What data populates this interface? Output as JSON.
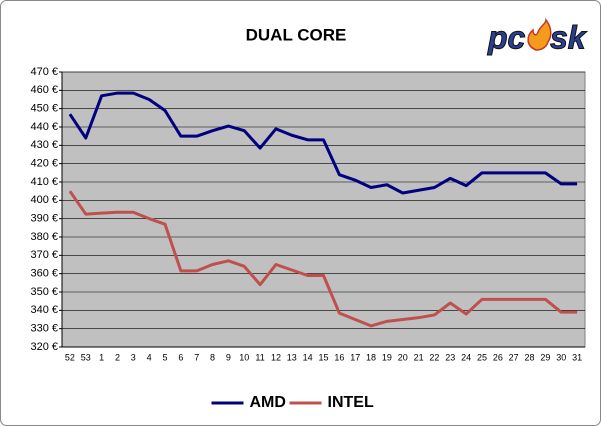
{
  "chart_data": {
    "type": "line",
    "title": "DUAL CORE",
    "logo": [
      "pc",
      "sk"
    ],
    "categories": [
      "52",
      "53",
      "1",
      "2",
      "3",
      "4",
      "5",
      "6",
      "7",
      "8",
      "9",
      "10",
      "11",
      "12",
      "13",
      "14",
      "15",
      "16",
      "17",
      "18",
      "19",
      "20",
      "21",
      "22",
      "23",
      "24",
      "25",
      "26",
      "27",
      "28",
      "29",
      "30",
      "31"
    ],
    "series": [
      {
        "name": "AMD",
        "color": "#000080",
        "values": [
          447,
          434,
          457,
          458.5,
          458.5,
          455,
          449,
          435,
          435,
          438,
          440.5,
          438,
          428.5,
          439,
          435.5,
          433,
          433,
          414,
          411,
          407,
          408.5,
          404,
          405.5,
          407,
          412,
          408,
          415,
          415,
          415,
          415,
          415,
          409,
          409
        ]
      },
      {
        "name": "INTEL",
        "color": "#c0504d",
        "values": [
          405,
          392.5,
          393,
          393.5,
          393.5,
          390,
          387,
          361.5,
          361.5,
          365,
          367,
          364,
          354,
          365,
          362,
          359,
          359,
          338.5,
          335,
          331.5,
          334,
          335,
          336,
          337.5,
          344,
          338,
          346,
          346,
          346,
          346,
          346,
          339,
          339
        ]
      }
    ],
    "ylim": [
      320,
      470
    ],
    "yticks": [
      {
        "value": 320,
        "label": "320 €"
      },
      {
        "value": 330,
        "label": "330 €"
      },
      {
        "value": 340,
        "label": "340 €"
      },
      {
        "value": 350,
        "label": "350 €"
      },
      {
        "value": 360,
        "label": "360 €"
      },
      {
        "value": 370,
        "label": "370 €"
      },
      {
        "value": 380,
        "label": "380 €"
      },
      {
        "value": 390,
        "label": "390 €"
      },
      {
        "value": 400,
        "label": "400 €"
      },
      {
        "value": 410,
        "label": "410 €"
      },
      {
        "value": 420,
        "label": "420 €"
      },
      {
        "value": 430,
        "label": "430 €"
      },
      {
        "value": 440,
        "label": "440 €"
      },
      {
        "value": 450,
        "label": "450 €"
      },
      {
        "value": 460,
        "label": "460 €"
      },
      {
        "value": 470,
        "label": "470 €"
      }
    ],
    "grid": true,
    "legend": "bottom"
  }
}
